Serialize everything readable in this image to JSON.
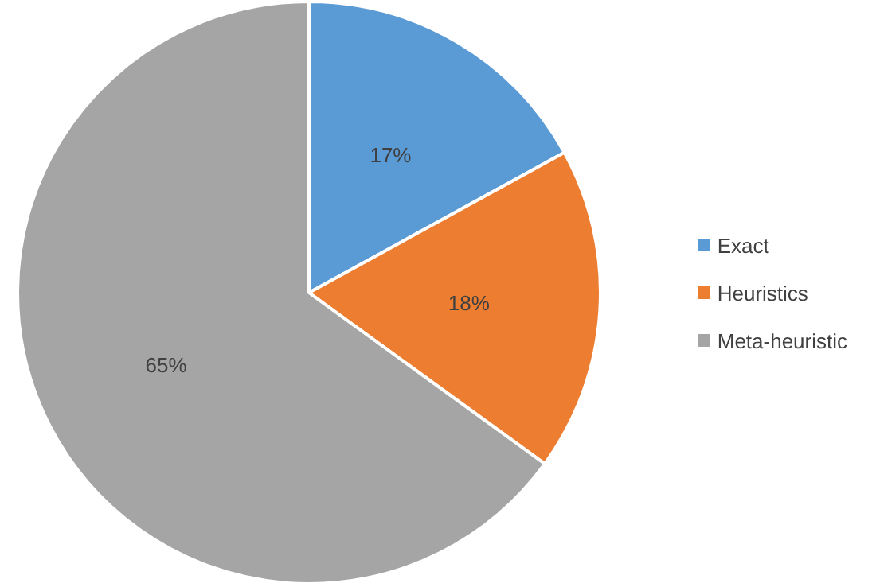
{
  "chart_data": {
    "type": "pie",
    "categories": [
      "Exact",
      "Heuristics",
      "Meta-heuristic"
    ],
    "values": [
      17,
      18,
      65
    ],
    "colors": [
      "#5b9bd5",
      "#ed7d31",
      "#a5a5a5"
    ],
    "value_labels": [
      "17%",
      "18%",
      "65%"
    ],
    "legend": "right"
  }
}
